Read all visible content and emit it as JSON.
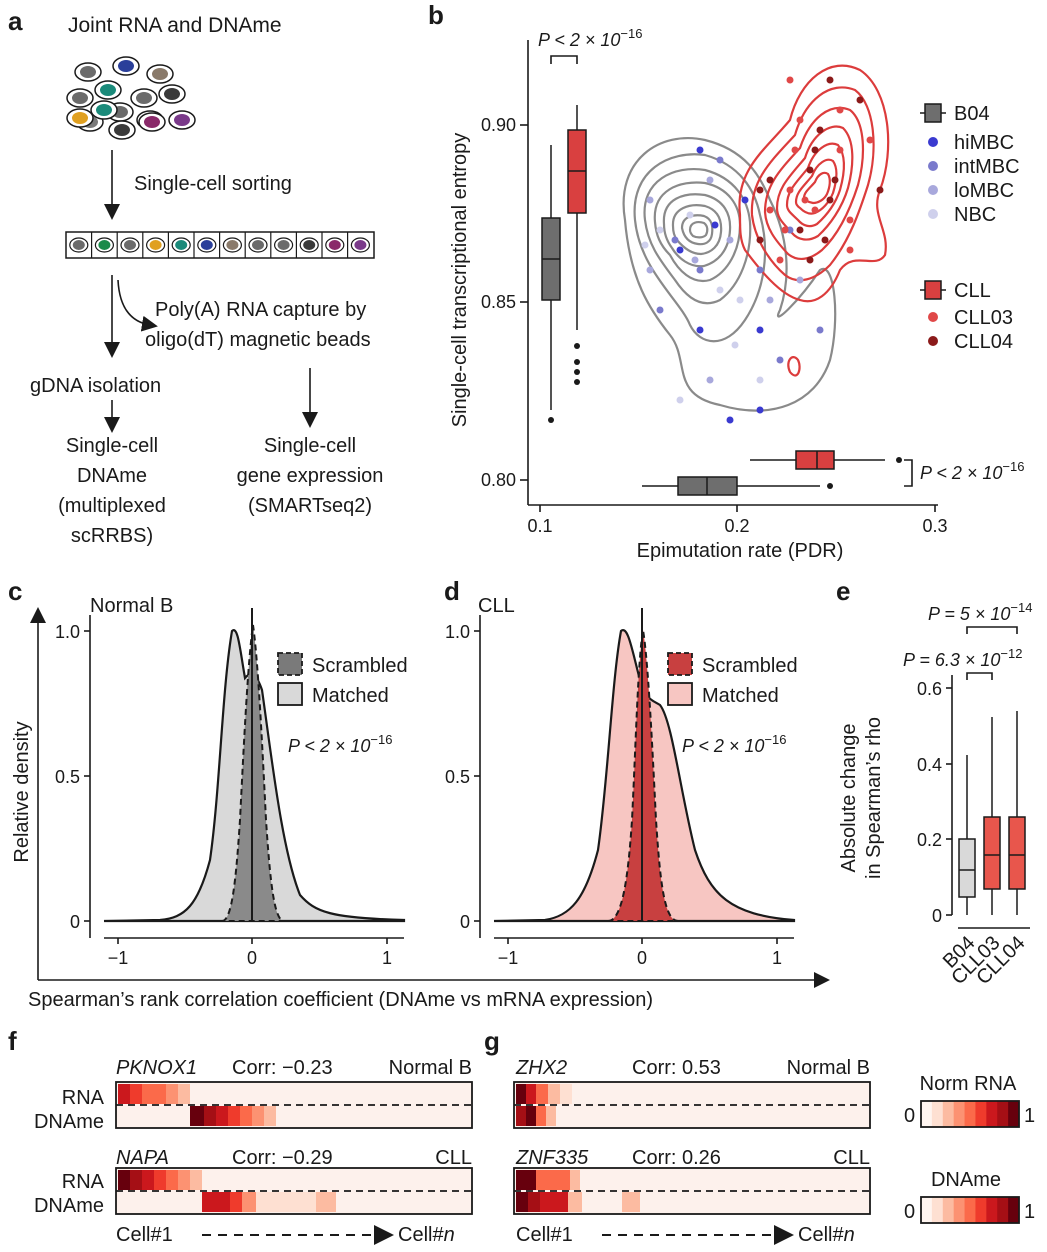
{
  "panels": {
    "a": {
      "letter": "a",
      "title": "Joint RNA and DNAme",
      "sorting": "Single-cell sorting",
      "capture_line1": "Poly(A) RNA capture by",
      "capture_line2": "oligo(dT) magnetic beads",
      "gdna": "gDNA isolation",
      "left_out": [
        "Single-cell",
        "DNAme",
        "(multiplexed",
        "scRRBS)"
      ],
      "right_out": [
        "Single-cell",
        "gene expression",
        "(SMARTseq2)"
      ],
      "cell_colors": [
        "#6b6b6b",
        "#2a3f9a",
        "#8a7a6a",
        "#6b6b6b",
        "#1a8a7a",
        "#6b6b6b",
        "#3a3a3a",
        "#7a7a7a",
        "#6b6b6b",
        "#e0a020",
        "#1a8a7a",
        "#6b6b6b",
        "#3a3a3a",
        "#8a2a6a",
        "#7a3a8a"
      ],
      "strip_colors": [
        "#6b6b6b",
        "#1a8a4a",
        "#6b6b6b",
        "#e0a020",
        "#1a8a7a",
        "#2a3f9a",
        "#8a7a6a",
        "#6b6b6b",
        "#6b6b6b",
        "#3a3a3a",
        "#8a2a6a",
        "#7a3a8a"
      ]
    },
    "b": {
      "letter": "b",
      "ylabel": "Single-cell transcriptional entropy",
      "xlabel": "Epimutation rate (PDR)",
      "yticks": [
        "0.90",
        "0.85",
        "0.80"
      ],
      "xticks": [
        "0.1",
        "0.2",
        "0.3"
      ],
      "pval_top": "P < 2 × 10",
      "pval_top_exp": "−16",
      "pval_right": "P < 2 × 10",
      "pval_right_exp": "−16",
      "legend_b04": "B04",
      "legend_b04_items": [
        "hiMBC",
        "intMBC",
        "loMBC",
        "NBC"
      ],
      "legend_cll": "CLL",
      "legend_cll_items": [
        "CLL03",
        "CLL04"
      ]
    },
    "c": {
      "letter": "c",
      "title": "Normal B",
      "legend": [
        "Scrambled",
        "Matched"
      ],
      "pval": "P < 2 × 10",
      "pval_exp": "−16"
    },
    "d": {
      "letter": "d",
      "title": "CLL",
      "legend": [
        "Scrambled",
        "Matched"
      ],
      "pval": "P < 2 × 10",
      "pval_exp": "−16"
    },
    "cd_shared": {
      "ylabel": "Relative density",
      "xlabel": "Spearman’s rank correlation coefficient  (DNAme vs mRNA expression)",
      "yticks": [
        "1.0",
        "0.5",
        "0"
      ],
      "xticks": [
        "−1",
        "0",
        "1"
      ]
    },
    "e": {
      "letter": "e",
      "ylabel_line1": "Absolute change",
      "ylabel_line2": "in Spearman’s rho",
      "yticks": [
        "0.6",
        "0.4",
        "0.2",
        "0"
      ],
      "categories": [
        "B04",
        "CLL03",
        "CLL04"
      ],
      "p1": "P = 5 × 10",
      "p1_exp": "−14",
      "p2": "P = 6.3 × 10",
      "p2_exp": "−12"
    },
    "f": {
      "letter": "f",
      "gene1": "PKNOX1",
      "corr1": "Corr: −0.23",
      "group1": "Normal B",
      "gene2": "NAPA",
      "corr2": "Corr: −0.29",
      "group2": "CLL",
      "row_rna": "RNA",
      "row_dname": "DNAme",
      "cell_start": "Cell#1",
      "cell_end": "Cell#",
      "cell_end_n": "n"
    },
    "g": {
      "letter": "g",
      "gene1": "ZHX2",
      "corr1": "Corr: 0.53",
      "group1": "Normal B",
      "gene2": "ZNF335",
      "corr2": "Corr: 0.26",
      "group2": "CLL",
      "cell_start": "Cell#1",
      "cell_end": "Cell#",
      "cell_end_n": "n",
      "scale1_title": "Norm RNA",
      "scale2_title": "DNAme",
      "scale_min": "0",
      "scale_max": "1"
    }
  },
  "colors": {
    "grey_box": "#6e6e6e",
    "red_box": "#d94040",
    "dark_red": "#8b1a1a",
    "light_grey_fill": "#d9d9d9",
    "light_red_fill": "#f7c6c2",
    "purple_dots": [
      "#3a3ad0",
      "#7a7acc",
      "#a8a8dc",
      "#cfd0ec"
    ]
  }
}
